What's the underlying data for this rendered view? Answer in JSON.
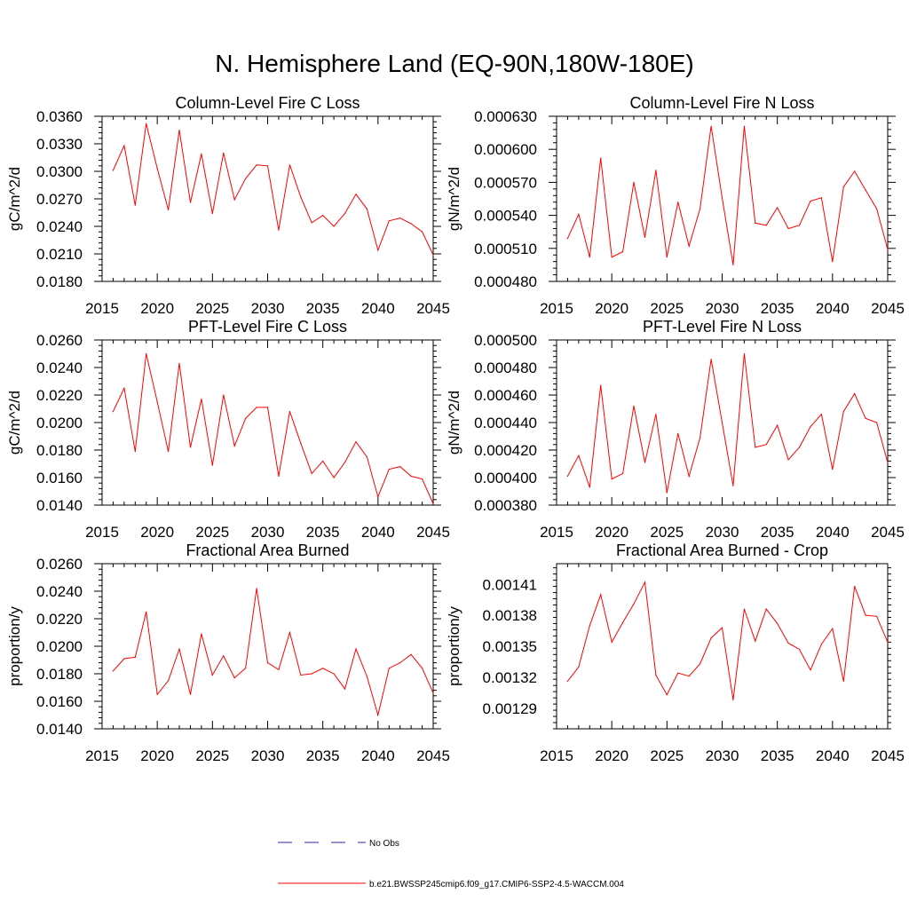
{
  "title": "N. Hemisphere Land (EQ-90N,180W-180E)",
  "colors": {
    "model": "#ff0000",
    "obs": "#2a2aa0",
    "axis": "#000000"
  },
  "legend": {
    "obs_label": "No Obs",
    "model_label": "b.e21.BWSSP245cmip6.f09_g17.CMIP6-SSP2-4.5-WACCM.004"
  },
  "chart_data": [
    {
      "type": "line",
      "title": "Column-Level Fire C Loss",
      "ylabel": "gC/m^2/d",
      "xlim": [
        2015,
        2045
      ],
      "ylim": [
        0.018,
        0.036
      ],
      "xticks": [
        "2015",
        "2020",
        "2025",
        "2030",
        "2035",
        "2040",
        "2045"
      ],
      "yticks": [
        "0.0180",
        "0.0210",
        "0.0240",
        "0.0270",
        "0.0300",
        "0.0330",
        "0.0360"
      ],
      "series": [
        {
          "x": [
            2016,
            2017,
            2018,
            2019,
            2020,
            2021,
            2022,
            2023,
            2024,
            2025,
            2026,
            2027,
            2028,
            2029,
            2030,
            2031,
            2032,
            2033,
            2034,
            2035,
            2036,
            2037,
            2038,
            2039,
            2040,
            2041,
            2042,
            2043,
            2044,
            2045
          ],
          "values": [
            0.0301,
            0.0328,
            0.0263,
            0.0352,
            0.0303,
            0.0258,
            0.0345,
            0.0266,
            0.0319,
            0.0254,
            0.032,
            0.0269,
            0.0292,
            0.0307,
            0.0306,
            0.0236,
            0.0307,
            0.0272,
            0.0244,
            0.0252,
            0.024,
            0.0254,
            0.0275,
            0.0259,
            0.0214,
            0.0246,
            0.0249,
            0.0243,
            0.0234,
            0.0209
          ]
        }
      ]
    },
    {
      "type": "line",
      "title": "Column-Level Fire N Loss",
      "ylabel": "gN/m^2/d",
      "xlim": [
        2015,
        2045
      ],
      "ylim": [
        0.00048,
        0.00063
      ],
      "xticks": [
        "2015",
        "2020",
        "2025",
        "2030",
        "2035",
        "2040",
        "2045"
      ],
      "yticks": [
        "0.000480",
        "0.000510",
        "0.000540",
        "0.000570",
        "0.000600",
        "0.000630"
      ],
      "series": [
        {
          "x": [
            2016,
            2017,
            2018,
            2019,
            2020,
            2021,
            2022,
            2023,
            2024,
            2025,
            2026,
            2027,
            2028,
            2029,
            2030,
            2031,
            2032,
            2033,
            2034,
            2035,
            2036,
            2037,
            2038,
            2039,
            2040,
            2041,
            2042,
            2043,
            2044,
            2045
          ],
          "values": [
            0.000519,
            0.000541,
            0.000502,
            0.000592,
            0.000502,
            0.000507,
            0.00057,
            0.00052,
            0.000581,
            0.000502,
            0.000552,
            0.000512,
            0.000546,
            0.000621,
            0.000556,
            0.000495,
            0.000621,
            0.000533,
            0.000531,
            0.000547,
            0.000528,
            0.000531,
            0.000553,
            0.000556,
            0.000498,
            0.000566,
            0.00058,
            0.000563,
            0.000546,
            0.000509
          ]
        }
      ]
    },
    {
      "type": "line",
      "title": "PFT-Level Fire C Loss",
      "ylabel": "gC/m^2/d",
      "xlim": [
        2015,
        2045
      ],
      "ylim": [
        0.014,
        0.026
      ],
      "xticks": [
        "2015",
        "2020",
        "2025",
        "2030",
        "2035",
        "2040",
        "2045"
      ],
      "yticks": [
        "0.0140",
        "0.0160",
        "0.0180",
        "0.0200",
        "0.0220",
        "0.0240",
        "0.0260"
      ],
      "series": [
        {
          "x": [
            2016,
            2017,
            2018,
            2019,
            2020,
            2021,
            2022,
            2023,
            2024,
            2025,
            2026,
            2027,
            2028,
            2029,
            2030,
            2031,
            2032,
            2033,
            2034,
            2035,
            2036,
            2037,
            2038,
            2039,
            2040,
            2041,
            2042,
            2043,
            2044,
            2045
          ],
          "values": [
            0.0208,
            0.0225,
            0.0179,
            0.025,
            0.0215,
            0.0179,
            0.0243,
            0.0182,
            0.0217,
            0.0169,
            0.022,
            0.0183,
            0.0203,
            0.0211,
            0.0211,
            0.0161,
            0.0208,
            0.0185,
            0.0163,
            0.0172,
            0.016,
            0.0171,
            0.0186,
            0.0175,
            0.0146,
            0.0166,
            0.0168,
            0.0161,
            0.0159,
            0.0141
          ]
        }
      ]
    },
    {
      "type": "line",
      "title": "PFT-Level Fire N Loss",
      "ylabel": "gN/m^2/d",
      "xlim": [
        2015,
        2045
      ],
      "ylim": [
        0.00038,
        0.0005
      ],
      "xticks": [
        "2015",
        "2020",
        "2025",
        "2030",
        "2035",
        "2040",
        "2045"
      ],
      "yticks": [
        "0.000380",
        "0.000400",
        "0.000420",
        "0.000440",
        "0.000460",
        "0.000480",
        "0.000500"
      ],
      "series": [
        {
          "x": [
            2016,
            2017,
            2018,
            2019,
            2020,
            2021,
            2022,
            2023,
            2024,
            2025,
            2026,
            2027,
            2028,
            2029,
            2030,
            2031,
            2032,
            2033,
            2034,
            2035,
            2036,
            2037,
            2038,
            2039,
            2040,
            2041,
            2042,
            2043,
            2044,
            2045
          ],
          "values": [
            0.000401,
            0.000416,
            0.000393,
            0.000467,
            0.000399,
            0.000403,
            0.000452,
            0.000411,
            0.000446,
            0.000389,
            0.000432,
            0.000401,
            0.000429,
            0.000486,
            0.00044,
            0.000394,
            0.00049,
            0.000422,
            0.000424,
            0.000438,
            0.000413,
            0.000422,
            0.000437,
            0.000446,
            0.000406,
            0.000448,
            0.000461,
            0.000443,
            0.00044,
            0.000411
          ]
        }
      ]
    },
    {
      "type": "line",
      "title": "Fractional Area Burned",
      "ylabel": "proportion/y",
      "xlim": [
        2015,
        2045
      ],
      "ylim": [
        0.014,
        0.026
      ],
      "xticks": [
        "2015",
        "2020",
        "2025",
        "2030",
        "2035",
        "2040",
        "2045"
      ],
      "yticks": [
        "0.0140",
        "0.0160",
        "0.0180",
        "0.0200",
        "0.0220",
        "0.0240",
        "0.0260"
      ],
      "series": [
        {
          "x": [
            2016,
            2017,
            2018,
            2019,
            2020,
            2021,
            2022,
            2023,
            2024,
            2025,
            2026,
            2027,
            2028,
            2029,
            2030,
            2031,
            2032,
            2033,
            2034,
            2035,
            2036,
            2037,
            2038,
            2039,
            2040,
            2041,
            2042,
            2043,
            2044,
            2045
          ],
          "values": [
            0.0182,
            0.0191,
            0.0192,
            0.0225,
            0.0165,
            0.0175,
            0.0198,
            0.0165,
            0.0209,
            0.0179,
            0.0193,
            0.0177,
            0.0184,
            0.0242,
            0.0188,
            0.0183,
            0.021,
            0.0179,
            0.018,
            0.0184,
            0.018,
            0.0169,
            0.0198,
            0.0178,
            0.015,
            0.0184,
            0.0188,
            0.0194,
            0.0184,
            0.0166
          ]
        }
      ]
    },
    {
      "type": "line",
      "title": "Fractional Area Burned - Crop",
      "ylabel": "proportion/y",
      "xlim": [
        2015,
        2045
      ],
      "ylim": [
        0.00127,
        0.00143
      ],
      "xticks": [
        "2015",
        "2020",
        "2025",
        "2030",
        "2035",
        "2040",
        "2045"
      ],
      "yticks": [
        "0.00129",
        "0.00132",
        "0.00135",
        "0.00138",
        "0.00141"
      ],
      "yticks_values": [
        0.00129,
        0.00132,
        0.00135,
        0.00138,
        0.00141
      ],
      "series": [
        {
          "x": [
            2016,
            2017,
            2018,
            2019,
            2020,
            2021,
            2022,
            2023,
            2024,
            2025,
            2026,
            2027,
            2028,
            2029,
            2030,
            2031,
            2032,
            2033,
            2034,
            2035,
            2036,
            2037,
            2038,
            2039,
            2040,
            2041,
            2042,
            2043,
            2044,
            2045
          ],
          "values": [
            0.001316,
            0.00133,
            0.00137,
            0.0014,
            0.001354,
            0.001373,
            0.001391,
            0.001412,
            0.001322,
            0.001303,
            0.001324,
            0.001321,
            0.001333,
            0.001358,
            0.001368,
            0.001298,
            0.001386,
            0.001355,
            0.001386,
            0.001372,
            0.001353,
            0.001347,
            0.001327,
            0.001352,
            0.001367,
            0.001316,
            0.001408,
            0.00138,
            0.001379,
            0.001354
          ]
        }
      ]
    }
  ]
}
